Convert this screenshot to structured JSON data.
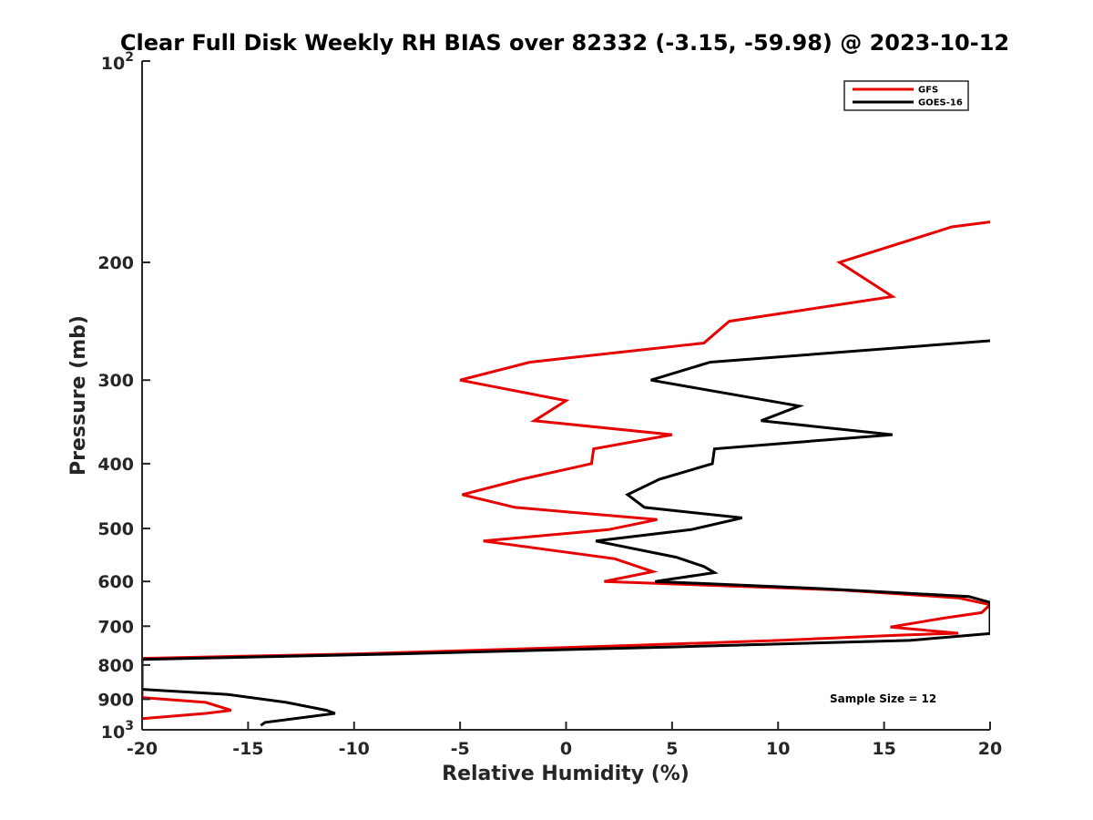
{
  "chart_data": {
    "type": "line",
    "title": "Clear Full Disk Weekly RH BIAS over 82332 (-3.15, -59.98) @ 2023-10-12",
    "xlabel": "Relative Humidity (%)",
    "ylabel": "Pressure (mb)",
    "xlim": [
      -20,
      20
    ],
    "ylim": [
      100,
      1000
    ],
    "yscale": "log",
    "y_reversed": true,
    "grid": false,
    "legend_position": "top-right",
    "x_ticks": [
      "-20",
      "-15",
      "-10",
      "-5",
      "0",
      "5",
      "10",
      "15",
      "20"
    ],
    "y_ticks": [
      {
        "value": 100,
        "base": "10",
        "exp": "2"
      },
      {
        "value": 200,
        "label": "200"
      },
      {
        "value": 300,
        "label": "300"
      },
      {
        "value": 400,
        "label": "400"
      },
      {
        "value": 500,
        "label": "500"
      },
      {
        "value": 600,
        "label": "600"
      },
      {
        "value": 700,
        "label": "700"
      },
      {
        "value": 800,
        "label": "800"
      },
      {
        "value": 900,
        "label": "900"
      },
      {
        "value": 1000,
        "base": "10",
        "exp": "3"
      }
    ],
    "series": [
      {
        "name": "GFS",
        "color": "#e60000",
        "points": [
          [
            20.0,
            174
          ],
          [
            18.2,
            177
          ],
          [
            12.9,
            200
          ],
          [
            15.4,
            225
          ],
          [
            7.7,
            245
          ],
          [
            6.5,
            264
          ],
          [
            -1.7,
            282
          ],
          [
            -5.0,
            300
          ],
          [
            0.0,
            322
          ],
          [
            -1.5,
            345
          ],
          [
            5.0,
            362
          ],
          [
            1.3,
            380
          ],
          [
            1.2,
            400
          ],
          [
            -2.1,
            422
          ],
          [
            -4.9,
            445
          ],
          [
            -2.4,
            465
          ],
          [
            4.3,
            485
          ],
          [
            2.0,
            502
          ],
          [
            -3.9,
            522
          ],
          [
            2.3,
            555
          ],
          [
            4.1,
            580
          ],
          [
            1.8,
            600
          ],
          [
            13.0,
            618
          ],
          [
            18.5,
            635
          ],
          [
            20.0,
            650
          ],
          [
            19.6,
            668
          ],
          [
            17.9,
            680
          ],
          [
            15.3,
            702
          ],
          [
            18.5,
            717
          ],
          [
            15.6,
            722
          ],
          [
            10.0,
            735
          ],
          [
            2.0,
            750
          ],
          [
            -10.0,
            770
          ],
          [
            -20.0,
            782
          ],
          [
            -20.0,
            895
          ],
          [
            -17.0,
            910
          ],
          [
            -15.8,
            935
          ],
          [
            -17.0,
            945
          ],
          [
            -20.0,
            962
          ]
        ]
      },
      {
        "name": "GOES-16",
        "color": "#000000",
        "points": [
          [
            20.0,
            262
          ],
          [
            6.8,
            282
          ],
          [
            4.0,
            300
          ],
          [
            11.0,
            328
          ],
          [
            9.2,
            345
          ],
          [
            15.4,
            362
          ],
          [
            7.0,
            380
          ],
          [
            6.9,
            400
          ],
          [
            4.4,
            422
          ],
          [
            2.9,
            445
          ],
          [
            3.7,
            465
          ],
          [
            8.3,
            482
          ],
          [
            5.9,
            502
          ],
          [
            1.4,
            522
          ],
          [
            5.2,
            552
          ],
          [
            6.5,
            570
          ],
          [
            7.0,
            582
          ],
          [
            4.2,
            600
          ],
          [
            12.0,
            615
          ],
          [
            19.0,
            632
          ],
          [
            20.0,
            645
          ],
          [
            20.0,
            718
          ],
          [
            16.2,
            735
          ],
          [
            5.0,
            752
          ],
          [
            -8.0,
            770
          ],
          [
            -20.0,
            785
          ],
          [
            -20.0,
            870
          ],
          [
            -16.0,
            885
          ],
          [
            -13.2,
            910
          ],
          [
            -11.3,
            935
          ],
          [
            -10.9,
            945
          ],
          [
            -14.2,
            975
          ],
          [
            -14.4,
            985
          ]
        ]
      }
    ],
    "annotations": [
      "Sample Size = 12"
    ]
  }
}
